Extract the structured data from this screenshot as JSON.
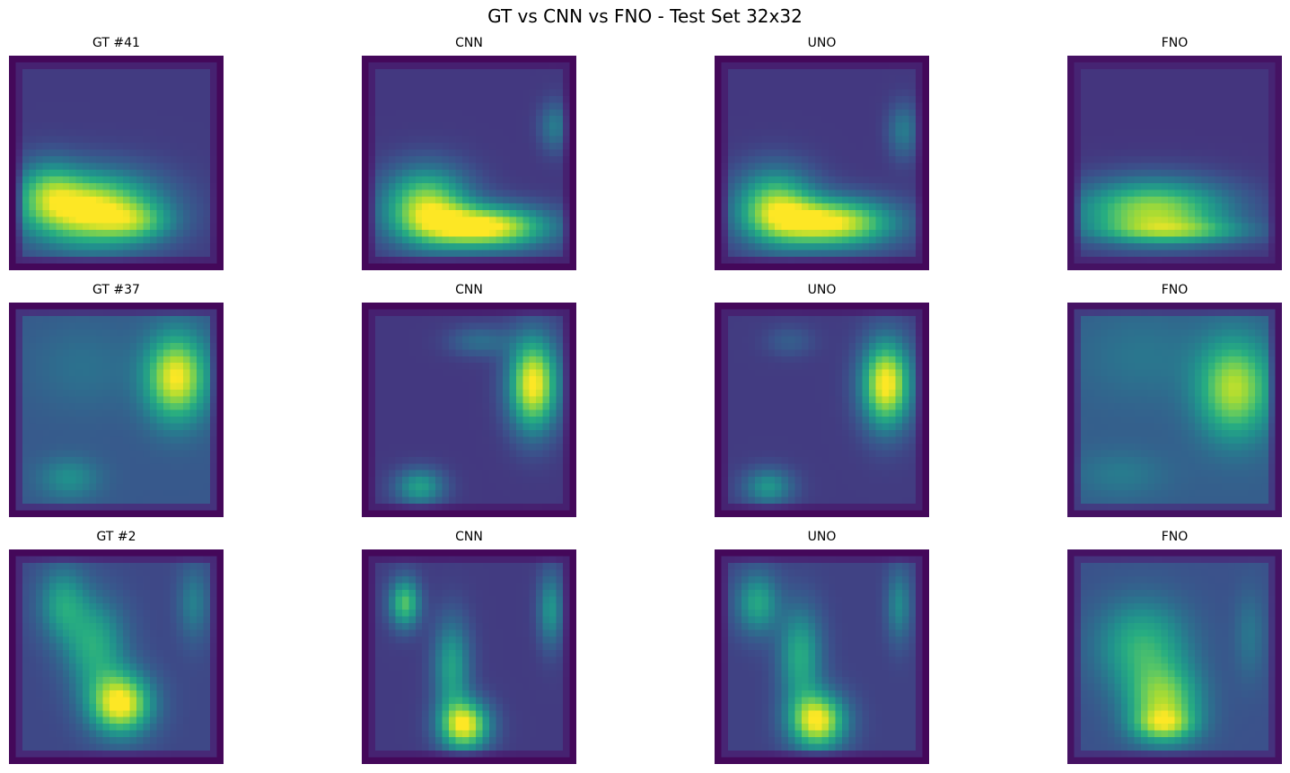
{
  "figure": {
    "title": "GT vs CNN vs FNO - Test Set 32x32",
    "colormap": "viridis",
    "grid": false,
    "axes_visible": false
  },
  "chart_data": [
    {
      "type": "heatmap",
      "title": "GT #41",
      "row": 0,
      "col": 0,
      "model": "GT",
      "sample": 41,
      "resolution": 32,
      "background": 0.18,
      "border_value": 0.02,
      "blobs": [
        {
          "cx": 0.38,
          "cy": 0.72,
          "sx": 0.22,
          "sy": 0.12,
          "a": 0.85
        },
        {
          "cx": 0.18,
          "cy": 0.62,
          "sx": 0.1,
          "sy": 0.1,
          "a": 0.3
        },
        {
          "cx": 0.6,
          "cy": 0.78,
          "sx": 0.12,
          "sy": 0.06,
          "a": 0.25
        }
      ]
    },
    {
      "type": "heatmap",
      "title": "CNN",
      "row": 0,
      "col": 1,
      "model": "CNN",
      "sample": 41,
      "resolution": 32,
      "background": 0.17,
      "border_value": 0.02,
      "blobs": [
        {
          "cx": 0.3,
          "cy": 0.7,
          "sx": 0.14,
          "sy": 0.12,
          "a": 0.7
        },
        {
          "cx": 0.58,
          "cy": 0.8,
          "sx": 0.2,
          "sy": 0.07,
          "a": 0.85
        },
        {
          "cx": 0.9,
          "cy": 0.33,
          "sx": 0.05,
          "sy": 0.08,
          "a": 0.25
        }
      ]
    },
    {
      "type": "heatmap",
      "title": "UNO",
      "row": 0,
      "col": 2,
      "model": "UNO",
      "sample": 41,
      "resolution": 32,
      "background": 0.17,
      "border_value": 0.02,
      "blobs": [
        {
          "cx": 0.28,
          "cy": 0.7,
          "sx": 0.13,
          "sy": 0.12,
          "a": 0.62
        },
        {
          "cx": 0.55,
          "cy": 0.78,
          "sx": 0.2,
          "sy": 0.08,
          "a": 0.82
        },
        {
          "cx": 0.88,
          "cy": 0.35,
          "sx": 0.05,
          "sy": 0.09,
          "a": 0.25
        }
      ]
    },
    {
      "type": "heatmap",
      "title": "FNO",
      "row": 0,
      "col": 3,
      "model": "FNO",
      "sample": 41,
      "resolution": 32,
      "background": 0.16,
      "border_value": 0.05,
      "blobs": [
        {
          "cx": 0.4,
          "cy": 0.72,
          "sx": 0.25,
          "sy": 0.1,
          "a": 0.7
        },
        {
          "cx": 0.52,
          "cy": 0.82,
          "sx": 0.25,
          "sy": 0.04,
          "a": 0.35
        }
      ]
    },
    {
      "type": "heatmap",
      "title": "GT #37",
      "row": 1,
      "col": 0,
      "model": "GT",
      "sample": 37,
      "resolution": 32,
      "background": 0.28,
      "border_value": 0.02,
      "blobs": [
        {
          "cx": 0.78,
          "cy": 0.35,
          "sx": 0.1,
          "sy": 0.14,
          "a": 0.72
        },
        {
          "cx": 0.28,
          "cy": 0.82,
          "sx": 0.1,
          "sy": 0.07,
          "a": 0.22
        },
        {
          "cx": 0.35,
          "cy": 0.3,
          "sx": 0.18,
          "sy": 0.15,
          "a": 0.1
        }
      ]
    },
    {
      "type": "heatmap",
      "title": "CNN",
      "row": 1,
      "col": 1,
      "model": "CNN",
      "sample": 37,
      "resolution": 32,
      "background": 0.17,
      "border_value": 0.02,
      "blobs": [
        {
          "cx": 0.8,
          "cy": 0.38,
          "sx": 0.08,
          "sy": 0.15,
          "a": 0.85
        },
        {
          "cx": 0.55,
          "cy": 0.18,
          "sx": 0.1,
          "sy": 0.05,
          "a": 0.2
        },
        {
          "cx": 0.27,
          "cy": 0.86,
          "sx": 0.08,
          "sy": 0.06,
          "a": 0.4
        }
      ]
    },
    {
      "type": "heatmap",
      "title": "UNO",
      "row": 1,
      "col": 2,
      "model": "UNO",
      "sample": 37,
      "resolution": 32,
      "background": 0.18,
      "border_value": 0.02,
      "blobs": [
        {
          "cx": 0.8,
          "cy": 0.38,
          "sx": 0.08,
          "sy": 0.14,
          "a": 0.85
        },
        {
          "cx": 0.35,
          "cy": 0.18,
          "sx": 0.08,
          "sy": 0.05,
          "a": 0.12
        },
        {
          "cx": 0.25,
          "cy": 0.86,
          "sx": 0.08,
          "sy": 0.06,
          "a": 0.35
        }
      ]
    },
    {
      "type": "heatmap",
      "title": "FNO",
      "row": 1,
      "col": 3,
      "model": "FNO",
      "sample": 37,
      "resolution": 32,
      "background": 0.3,
      "border_value": 0.05,
      "blobs": [
        {
          "cx": 0.78,
          "cy": 0.4,
          "sx": 0.12,
          "sy": 0.16,
          "a": 0.6
        },
        {
          "cx": 0.35,
          "cy": 0.25,
          "sx": 0.2,
          "sy": 0.15,
          "a": 0.1
        },
        {
          "cx": 0.25,
          "cy": 0.8,
          "sx": 0.15,
          "sy": 0.08,
          "a": 0.12
        }
      ]
    },
    {
      "type": "heatmap",
      "title": "GT #2",
      "row": 2,
      "col": 0,
      "model": "GT",
      "sample": 2,
      "resolution": 32,
      "background": 0.22,
      "border_value": 0.02,
      "blobs": [
        {
          "cx": 0.52,
          "cy": 0.72,
          "sx": 0.1,
          "sy": 0.1,
          "a": 0.8
        },
        {
          "cx": 0.4,
          "cy": 0.45,
          "sx": 0.1,
          "sy": 0.15,
          "a": 0.4
        },
        {
          "cx": 0.25,
          "cy": 0.25,
          "sx": 0.08,
          "sy": 0.12,
          "a": 0.35
        },
        {
          "cx": 0.86,
          "cy": 0.25,
          "sx": 0.05,
          "sy": 0.12,
          "a": 0.22
        }
      ]
    },
    {
      "type": "heatmap",
      "title": "CNN",
      "row": 2,
      "col": 1,
      "model": "CNN",
      "sample": 2,
      "resolution": 32,
      "background": 0.18,
      "border_value": 0.02,
      "blobs": [
        {
          "cx": 0.48,
          "cy": 0.82,
          "sx": 0.08,
          "sy": 0.08,
          "a": 0.8
        },
        {
          "cx": 0.42,
          "cy": 0.55,
          "sx": 0.06,
          "sy": 0.16,
          "a": 0.4
        },
        {
          "cx": 0.2,
          "cy": 0.25,
          "sx": 0.05,
          "sy": 0.08,
          "a": 0.55
        },
        {
          "cx": 0.88,
          "cy": 0.28,
          "sx": 0.04,
          "sy": 0.12,
          "a": 0.35
        }
      ]
    },
    {
      "type": "heatmap",
      "title": "UNO",
      "row": 2,
      "col": 2,
      "model": "UNO",
      "sample": 2,
      "resolution": 32,
      "background": 0.2,
      "border_value": 0.02,
      "blobs": [
        {
          "cx": 0.48,
          "cy": 0.8,
          "sx": 0.09,
          "sy": 0.09,
          "a": 0.8
        },
        {
          "cx": 0.4,
          "cy": 0.5,
          "sx": 0.07,
          "sy": 0.16,
          "a": 0.42
        },
        {
          "cx": 0.2,
          "cy": 0.25,
          "sx": 0.07,
          "sy": 0.1,
          "a": 0.4
        },
        {
          "cx": 0.86,
          "cy": 0.26,
          "sx": 0.04,
          "sy": 0.12,
          "a": 0.28
        }
      ]
    },
    {
      "type": "heatmap",
      "title": "FNO",
      "row": 2,
      "col": 3,
      "model": "FNO",
      "sample": 2,
      "resolution": 32,
      "background": 0.25,
      "border_value": 0.05,
      "blobs": [
        {
          "cx": 0.45,
          "cy": 0.72,
          "sx": 0.12,
          "sy": 0.12,
          "a": 0.55
        },
        {
          "cx": 0.35,
          "cy": 0.45,
          "sx": 0.15,
          "sy": 0.15,
          "a": 0.4
        },
        {
          "cx": 0.45,
          "cy": 0.82,
          "sx": 0.1,
          "sy": 0.05,
          "a": 0.35
        },
        {
          "cx": 0.85,
          "cy": 0.4,
          "sx": 0.05,
          "sy": 0.15,
          "a": 0.15
        }
      ]
    }
  ]
}
